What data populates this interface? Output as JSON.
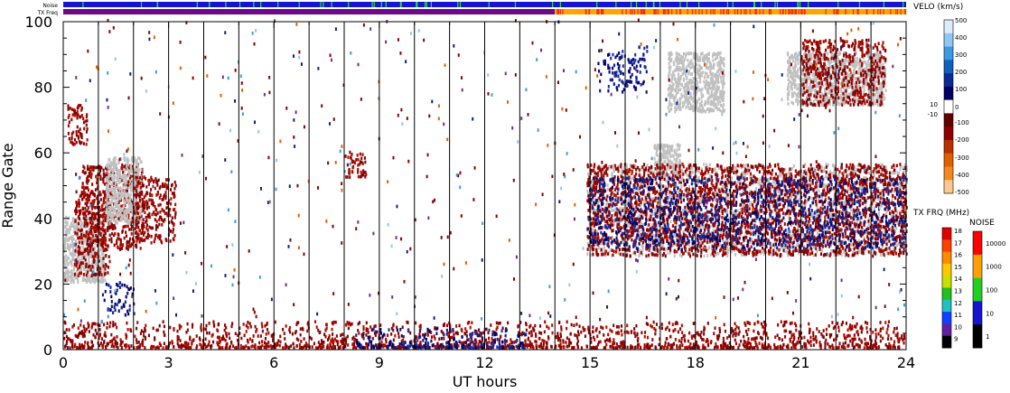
{
  "chart_data": {
    "type": "heatmap",
    "xlabel": "UT hours",
    "ylabel": "Range Gate",
    "xlim": [
      0,
      24
    ],
    "ylim": [
      0,
      100
    ],
    "x_ticks": [
      "0",
      "3",
      "6",
      "9",
      "12",
      "15",
      "18",
      "21",
      "24"
    ],
    "y_ticks": [
      "0",
      "20",
      "40",
      "60",
      "80",
      "100"
    ],
    "x_tick_values": [
      0,
      3,
      6,
      9,
      12,
      15,
      18,
      21,
      24
    ],
    "y_tick_values": [
      0,
      20,
      40,
      60,
      80,
      100
    ],
    "hour_lines": [
      1,
      2,
      3,
      4,
      5,
      6,
      7,
      8,
      9,
      10,
      11,
      12,
      13,
      14,
      15,
      16,
      17,
      18,
      19,
      20,
      21,
      22,
      23
    ],
    "top_strips": [
      {
        "label": "Noise",
        "segments": [
          {
            "from": 0,
            "to": 24,
            "color": "#1414d2"
          }
        ]
      },
      {
        "label": "TX Freq",
        "segments": [
          {
            "from": 0,
            "to": 14.0,
            "color": "#6a0a8a"
          },
          {
            "from": 14.0,
            "to": 24,
            "color": "#ffa500"
          }
        ]
      }
    ],
    "velocity_scale": {
      "title": "VELO (km/s)",
      "ticks": [
        "500",
        "400",
        "300",
        "200",
        "100",
        "10",
        "0",
        "-10",
        "-100",
        "-200",
        "-300",
        "-400",
        "-500"
      ],
      "colors": [
        "#dcecff",
        "#8fc7f2",
        "#3c9be0",
        "#1060c0",
        "#0b2a96",
        "#000060",
        "#ffffff",
        "#600000",
        "#900000",
        "#b83000",
        "#e06000",
        "#f08a20",
        "#fbc890"
      ]
    },
    "txfreq_scale": {
      "title": "TX FRQ (MHz)",
      "ticks": [
        "18",
        "17",
        "16",
        "15",
        "14",
        "13",
        "12",
        "11",
        "10",
        "9"
      ],
      "colors": [
        "#e00000",
        "#ff4000",
        "#ff8c00",
        "#ffc800",
        "#c8e000",
        "#20c020",
        "#20c0c0",
        "#1040ff",
        "#6020a0",
        "#000000"
      ]
    },
    "noise_scale": {
      "title": "NOISE",
      "ticks": [
        "10000",
        "1000",
        "100",
        "10",
        "1"
      ],
      "colors": [
        "#ff0000",
        "#ffa000",
        "#20d020",
        "#1414d2",
        "#000000"
      ]
    },
    "ground_scatter_color": "#c0c0c0",
    "regions": [
      {
        "kind": "ground",
        "t0": 0.0,
        "t1": 1.2,
        "g0": 20,
        "g1": 40
      },
      {
        "kind": "negative",
        "t0": 0.3,
        "t1": 1.3,
        "g0": 22,
        "g1": 48
      },
      {
        "kind": "negative",
        "t0": 0.5,
        "t1": 2.3,
        "g0": 30,
        "g1": 56
      },
      {
        "kind": "ground",
        "t0": 1.2,
        "t1": 2.2,
        "g0": 38,
        "g1": 58
      },
      {
        "kind": "negative",
        "t0": 2.0,
        "t1": 3.2,
        "g0": 32,
        "g1": 52
      },
      {
        "kind": "negative",
        "t0": 0.1,
        "t1": 0.7,
        "g0": 62,
        "g1": 74
      },
      {
        "kind": "positive",
        "t0": 1.1,
        "t1": 2.0,
        "g0": 10,
        "g1": 20
      },
      {
        "kind": "negative",
        "t0": 0.0,
        "t1": 24.0,
        "g0": 0,
        "g1": 8
      },
      {
        "kind": "positive",
        "t0": 8.3,
        "t1": 13.2,
        "g0": 0,
        "g1": 6
      },
      {
        "kind": "negative",
        "t0": 8.0,
        "t1": 8.6,
        "g0": 52,
        "g1": 60
      },
      {
        "kind": "ground",
        "t0": 14.9,
        "t1": 24.0,
        "g0": 28,
        "g1": 56
      },
      {
        "kind": "ground",
        "t0": 16.8,
        "t1": 17.6,
        "g0": 52,
        "g1": 62
      },
      {
        "kind": "negative",
        "t0": 14.9,
        "t1": 24.0,
        "g0": 28,
        "g1": 56
      },
      {
        "kind": "positive",
        "t0": 14.9,
        "t1": 24.0,
        "g0": 30,
        "g1": 52
      },
      {
        "kind": "positive",
        "t0": 15.2,
        "t1": 16.6,
        "g0": 78,
        "g1": 92
      },
      {
        "kind": "ground",
        "t0": 17.2,
        "t1": 18.8,
        "g0": 72,
        "g1": 90
      },
      {
        "kind": "ground",
        "t0": 20.6,
        "t1": 23.4,
        "g0": 74,
        "g1": 90
      },
      {
        "kind": "negative",
        "t0": 21.0,
        "t1": 23.4,
        "g0": 74,
        "g1": 94
      }
    ],
    "grid": false,
    "legend": "right"
  }
}
